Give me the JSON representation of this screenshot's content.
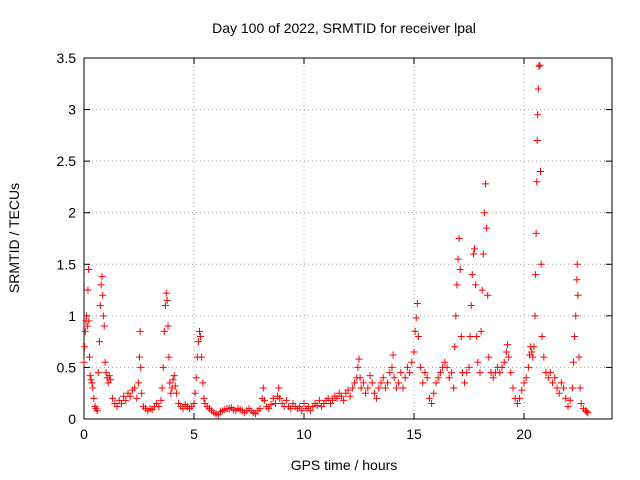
{
  "chart_data": {
    "type": "scatter",
    "title": "Day 100 of 2022, SRMTID for receiver lpal",
    "xlabel": "GPS time / hours",
    "ylabel": "SRMTID / TECUs",
    "xlim": [
      0,
      24
    ],
    "ylim": [
      0,
      3.5
    ],
    "xticks": [
      0,
      5,
      10,
      15,
      20
    ],
    "yticks": [
      0,
      0.5,
      1,
      1.5,
      2,
      2.5,
      3,
      3.5
    ],
    "xtick_labels": [
      "0",
      "5",
      "10",
      "15",
      "20"
    ],
    "ytick_labels": [
      "0",
      "0.5",
      "1",
      "1.5",
      "2",
      "2.5",
      "3",
      "3.5"
    ],
    "grid": true,
    "marker": "+",
    "color": "#ff0000",
    "series": [
      {
        "name": "SRMTID",
        "points": [
          [
            0.0,
            0.55
          ],
          [
            0.03,
            0.7
          ],
          [
            0.06,
            0.85
          ],
          [
            0.09,
            0.95
          ],
          [
            0.12,
            1.0
          ],
          [
            0.15,
            0.9
          ],
          [
            0.18,
            1.25
          ],
          [
            0.2,
            1.45
          ],
          [
            0.22,
            0.95
          ],
          [
            0.25,
            0.6
          ],
          [
            0.28,
            0.42
          ],
          [
            0.32,
            0.38
          ],
          [
            0.36,
            0.35
          ],
          [
            0.4,
            0.3
          ],
          [
            0.45,
            0.2
          ],
          [
            0.5,
            0.12
          ],
          [
            0.55,
            0.1
          ],
          [
            0.6,
            0.08
          ],
          [
            0.65,
            0.45
          ],
          [
            0.7,
            0.75
          ],
          [
            0.74,
            1.1
          ],
          [
            0.78,
            1.3
          ],
          [
            0.82,
            1.38
          ],
          [
            0.85,
            1.2
          ],
          [
            0.88,
            1.0
          ],
          [
            0.92,
            0.9
          ],
          [
            0.96,
            0.55
          ],
          [
            1.0,
            0.45
          ],
          [
            1.05,
            0.4
          ],
          [
            1.1,
            0.35
          ],
          [
            1.15,
            0.42
          ],
          [
            1.2,
            0.38
          ],
          [
            1.3,
            0.2
          ],
          [
            1.4,
            0.15
          ],
          [
            1.5,
            0.12
          ],
          [
            1.6,
            0.18
          ],
          [
            1.7,
            0.15
          ],
          [
            1.8,
            0.22
          ],
          [
            1.9,
            0.18
          ],
          [
            2.0,
            0.25
          ],
          [
            2.1,
            0.22
          ],
          [
            2.2,
            0.28
          ],
          [
            2.3,
            0.3
          ],
          [
            2.4,
            0.2
          ],
          [
            2.48,
            0.35
          ],
          [
            2.52,
            0.6
          ],
          [
            2.55,
            0.85
          ],
          [
            2.58,
            0.5
          ],
          [
            2.62,
            0.25
          ],
          [
            2.7,
            0.12
          ],
          [
            2.8,
            0.1
          ],
          [
            2.9,
            0.08
          ],
          [
            3.0,
            0.1
          ],
          [
            3.1,
            0.09
          ],
          [
            3.2,
            0.12
          ],
          [
            3.3,
            0.15
          ],
          [
            3.4,
            0.12
          ],
          [
            3.5,
            0.18
          ],
          [
            3.55,
            0.3
          ],
          [
            3.6,
            0.5
          ],
          [
            3.65,
            0.85
          ],
          [
            3.7,
            1.1
          ],
          [
            3.74,
            1.22
          ],
          [
            3.78,
            1.15
          ],
          [
            3.82,
            0.9
          ],
          [
            3.86,
            0.6
          ],
          [
            3.9,
            0.35
          ],
          [
            3.95,
            0.25
          ],
          [
            4.0,
            0.3
          ],
          [
            4.05,
            0.38
          ],
          [
            4.1,
            0.42
          ],
          [
            4.15,
            0.32
          ],
          [
            4.2,
            0.25
          ],
          [
            4.3,
            0.15
          ],
          [
            4.4,
            0.12
          ],
          [
            4.5,
            0.1
          ],
          [
            4.6,
            0.14
          ],
          [
            4.7,
            0.12
          ],
          [
            4.8,
            0.1
          ],
          [
            4.9,
            0.12
          ],
          [
            5.0,
            0.15
          ],
          [
            5.05,
            0.25
          ],
          [
            5.1,
            0.4
          ],
          [
            5.15,
            0.6
          ],
          [
            5.2,
            0.75
          ],
          [
            5.25,
            0.85
          ],
          [
            5.3,
            0.8
          ],
          [
            5.35,
            0.6
          ],
          [
            5.4,
            0.35
          ],
          [
            5.45,
            0.2
          ],
          [
            5.5,
            0.15
          ],
          [
            5.6,
            0.12
          ],
          [
            5.7,
            0.1
          ],
          [
            5.8,
            0.08
          ],
          [
            5.9,
            0.06
          ],
          [
            6.0,
            0.05
          ],
          [
            6.1,
            0.04
          ],
          [
            6.2,
            0.07
          ],
          [
            6.3,
            0.08
          ],
          [
            6.4,
            0.09
          ],
          [
            6.5,
            0.1
          ],
          [
            6.6,
            0.1
          ],
          [
            6.7,
            0.11
          ],
          [
            6.8,
            0.09
          ],
          [
            6.9,
            0.08
          ],
          [
            7.0,
            0.1
          ],
          [
            7.1,
            0.09
          ],
          [
            7.2,
            0.08
          ],
          [
            7.3,
            0.06
          ],
          [
            7.4,
            0.08
          ],
          [
            7.5,
            0.1
          ],
          [
            7.6,
            0.08
          ],
          [
            7.7,
            0.06
          ],
          [
            7.8,
            0.05
          ],
          [
            7.9,
            0.08
          ],
          [
            8.0,
            0.1
          ],
          [
            8.1,
            0.2
          ],
          [
            8.15,
            0.3
          ],
          [
            8.2,
            0.18
          ],
          [
            8.3,
            0.12
          ],
          [
            8.4,
            0.1
          ],
          [
            8.5,
            0.14
          ],
          [
            8.6,
            0.2
          ],
          [
            8.7,
            0.15
          ],
          [
            8.8,
            0.22
          ],
          [
            8.85,
            0.3
          ],
          [
            8.9,
            0.2
          ],
          [
            9.0,
            0.15
          ],
          [
            9.1,
            0.12
          ],
          [
            9.2,
            0.18
          ],
          [
            9.3,
            0.12
          ],
          [
            9.4,
            0.1
          ],
          [
            9.5,
            0.15
          ],
          [
            9.6,
            0.12
          ],
          [
            9.7,
            0.1
          ],
          [
            9.8,
            0.12
          ],
          [
            9.9,
            0.08
          ],
          [
            10.0,
            0.15
          ],
          [
            10.1,
            0.1
          ],
          [
            10.2,
            0.12
          ],
          [
            10.3,
            0.08
          ],
          [
            10.4,
            0.12
          ],
          [
            10.5,
            0.15
          ],
          [
            10.6,
            0.13
          ],
          [
            10.7,
            0.18
          ],
          [
            10.8,
            0.12
          ],
          [
            10.9,
            0.15
          ],
          [
            11.0,
            0.18
          ],
          [
            11.1,
            0.2
          ],
          [
            11.2,
            0.15
          ],
          [
            11.3,
            0.18
          ],
          [
            11.4,
            0.22
          ],
          [
            11.5,
            0.2
          ],
          [
            11.6,
            0.25
          ],
          [
            11.7,
            0.22
          ],
          [
            11.8,
            0.18
          ],
          [
            11.9,
            0.25
          ],
          [
            12.0,
            0.28
          ],
          [
            12.1,
            0.22
          ],
          [
            12.2,
            0.3
          ],
          [
            12.3,
            0.35
          ],
          [
            12.4,
            0.4
          ],
          [
            12.45,
            0.5
          ],
          [
            12.5,
            0.58
          ],
          [
            12.55,
            0.4
          ],
          [
            12.6,
            0.3
          ],
          [
            12.7,
            0.35
          ],
          [
            12.8,
            0.25
          ],
          [
            12.9,
            0.3
          ],
          [
            13.0,
            0.42
          ],
          [
            13.1,
            0.35
          ],
          [
            13.2,
            0.25
          ],
          [
            13.3,
            0.2
          ],
          [
            13.4,
            0.3
          ],
          [
            13.5,
            0.35
          ],
          [
            13.6,
            0.4
          ],
          [
            13.7,
            0.3
          ],
          [
            13.8,
            0.35
          ],
          [
            13.9,
            0.45
          ],
          [
            14.0,
            0.5
          ],
          [
            14.05,
            0.62
          ],
          [
            14.1,
            0.4
          ],
          [
            14.2,
            0.3
          ],
          [
            14.3,
            0.35
          ],
          [
            14.4,
            0.45
          ],
          [
            14.5,
            0.3
          ],
          [
            14.6,
            0.4
          ],
          [
            14.7,
            0.5
          ],
          [
            14.8,
            0.45
          ],
          [
            14.9,
            0.55
          ],
          [
            15.0,
            0.65
          ],
          [
            15.05,
            0.85
          ],
          [
            15.1,
            0.98
          ],
          [
            15.15,
            1.12
          ],
          [
            15.2,
            0.8
          ],
          [
            15.3,
            0.5
          ],
          [
            15.4,
            0.35
          ],
          [
            15.5,
            0.45
          ],
          [
            15.6,
            0.4
          ],
          [
            15.7,
            0.2
          ],
          [
            15.8,
            0.15
          ],
          [
            15.9,
            0.25
          ],
          [
            16.0,
            0.35
          ],
          [
            16.1,
            0.4
          ],
          [
            16.2,
            0.45
          ],
          [
            16.3,
            0.5
          ],
          [
            16.4,
            0.55
          ],
          [
            16.5,
            0.5
          ],
          [
            16.6,
            0.4
          ],
          [
            16.7,
            0.45
          ],
          [
            16.8,
            0.3
          ],
          [
            16.85,
            0.7
          ],
          [
            16.9,
            1.0
          ],
          [
            16.95,
            1.3
          ],
          [
            17.0,
            1.55
          ],
          [
            17.05,
            1.75
          ],
          [
            17.1,
            1.45
          ],
          [
            17.15,
            0.8
          ],
          [
            17.2,
            0.45
          ],
          [
            17.3,
            0.35
          ],
          [
            17.4,
            0.45
          ],
          [
            17.5,
            0.5
          ],
          [
            17.55,
            0.8
          ],
          [
            17.6,
            1.1
          ],
          [
            17.65,
            1.4
          ],
          [
            17.7,
            1.6
          ],
          [
            17.75,
            1.65
          ],
          [
            17.8,
            1.3
          ],
          [
            17.85,
            0.8
          ],
          [
            17.9,
            0.55
          ],
          [
            18.0,
            0.45
          ],
          [
            18.05,
            0.85
          ],
          [
            18.1,
            1.25
          ],
          [
            18.15,
            1.6
          ],
          [
            18.2,
            2.0
          ],
          [
            18.25,
            2.28
          ],
          [
            18.3,
            1.85
          ],
          [
            18.35,
            1.2
          ],
          [
            18.4,
            0.6
          ],
          [
            18.5,
            0.45
          ],
          [
            18.6,
            0.4
          ],
          [
            18.7,
            0.45
          ],
          [
            18.8,
            0.5
          ],
          [
            18.9,
            0.45
          ],
          [
            19.0,
            0.5
          ],
          [
            19.1,
            0.55
          ],
          [
            19.2,
            0.65
          ],
          [
            19.25,
            0.72
          ],
          [
            19.3,
            0.6
          ],
          [
            19.4,
            0.45
          ],
          [
            19.5,
            0.3
          ],
          [
            19.6,
            0.2
          ],
          [
            19.7,
            0.15
          ],
          [
            19.8,
            0.2
          ],
          [
            19.9,
            0.28
          ],
          [
            20.0,
            0.35
          ],
          [
            20.1,
            0.4
          ],
          [
            20.2,
            0.5
          ],
          [
            20.25,
            0.62
          ],
          [
            20.3,
            0.7
          ],
          [
            20.35,
            0.65
          ],
          [
            20.4,
            0.6
          ],
          [
            20.45,
            0.7
          ],
          [
            20.5,
            1.0
          ],
          [
            20.52,
            1.4
          ],
          [
            20.55,
            1.8
          ],
          [
            20.58,
            2.3
          ],
          [
            20.6,
            2.7
          ],
          [
            20.62,
            2.95
          ],
          [
            20.65,
            3.2
          ],
          [
            20.68,
            3.42
          ],
          [
            20.72,
            3.43
          ],
          [
            20.75,
            2.4
          ],
          [
            20.78,
            1.5
          ],
          [
            20.82,
            0.8
          ],
          [
            20.9,
            0.6
          ],
          [
            21.0,
            0.45
          ],
          [
            21.1,
            0.4
          ],
          [
            21.2,
            0.45
          ],
          [
            21.3,
            0.35
          ],
          [
            21.4,
            0.4
          ],
          [
            21.5,
            0.3
          ],
          [
            21.6,
            0.25
          ],
          [
            21.7,
            0.35
          ],
          [
            21.8,
            0.3
          ],
          [
            21.9,
            0.2
          ],
          [
            22.0,
            0.12
          ],
          [
            22.1,
            0.18
          ],
          [
            22.2,
            0.3
          ],
          [
            22.25,
            0.55
          ],
          [
            22.3,
            0.8
          ],
          [
            22.35,
            1.0
          ],
          [
            22.4,
            1.35
          ],
          [
            22.42,
            1.5
          ],
          [
            22.45,
            1.2
          ],
          [
            22.5,
            0.6
          ],
          [
            22.55,
            0.3
          ],
          [
            22.6,
            0.15
          ],
          [
            22.7,
            0.1
          ],
          [
            22.8,
            0.08
          ],
          [
            22.85,
            0.07
          ],
          [
            22.9,
            0.06
          ]
        ]
      }
    ]
  }
}
